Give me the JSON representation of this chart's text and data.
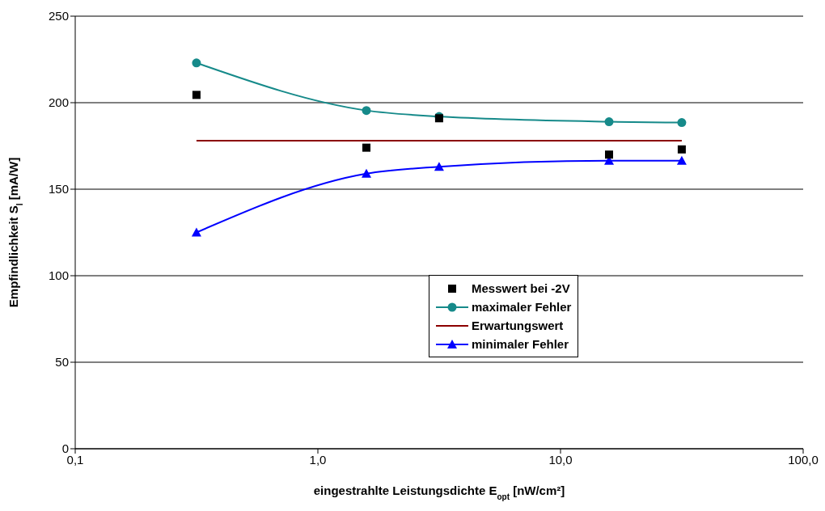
{
  "chart_data": {
    "type": "line",
    "xlabel": "eingestrahlte Leistungsdichte E$_{opt}$ [nW/cm²]",
    "ylabel": "Empfindlichkeit S$_{I}$ [mA/W]",
    "log": "x",
    "xlim": [
      0.1,
      100
    ],
    "xticks": [
      {
        "value": 0.1,
        "label": "0,1"
      },
      {
        "value": 1,
        "label": "1,0"
      },
      {
        "value": 10,
        "label": "10,0"
      },
      {
        "value": 100,
        "label": "100,0"
      }
    ],
    "ylim": [
      0,
      250
    ],
    "yticks": [
      0,
      50,
      100,
      150,
      200,
      250
    ],
    "grid": "y",
    "legend": "bottom",
    "series": [
      {
        "name": "Messwert bei -2V",
        "type": "scatter",
        "marker": "square",
        "color": "#000000",
        "x": [
          0.316,
          1.585,
          3.16,
          15.85,
          31.6
        ],
        "values": [
          204.5,
          174,
          191,
          170,
          173
        ]
      },
      {
        "name": "maximaler Fehler",
        "marker": "circle",
        "color": "#168a8a",
        "x": [
          0.316,
          1.585,
          3.16,
          15.85,
          31.6
        ],
        "values": [
          223,
          195.5,
          192,
          189,
          188.5
        ]
      },
      {
        "name": "Erwartungswert",
        "marker": "none",
        "color": "#8b0000",
        "x": [
          0.316,
          31.6
        ],
        "values": [
          178,
          178
        ]
      },
      {
        "name": "minimaler Fehler",
        "marker": "triangle",
        "color": "#0000ff",
        "x": [
          0.316,
          1.585,
          3.16,
          15.85,
          31.6
        ],
        "values": [
          125,
          159,
          163,
          166.5,
          166.5
        ]
      }
    ]
  }
}
